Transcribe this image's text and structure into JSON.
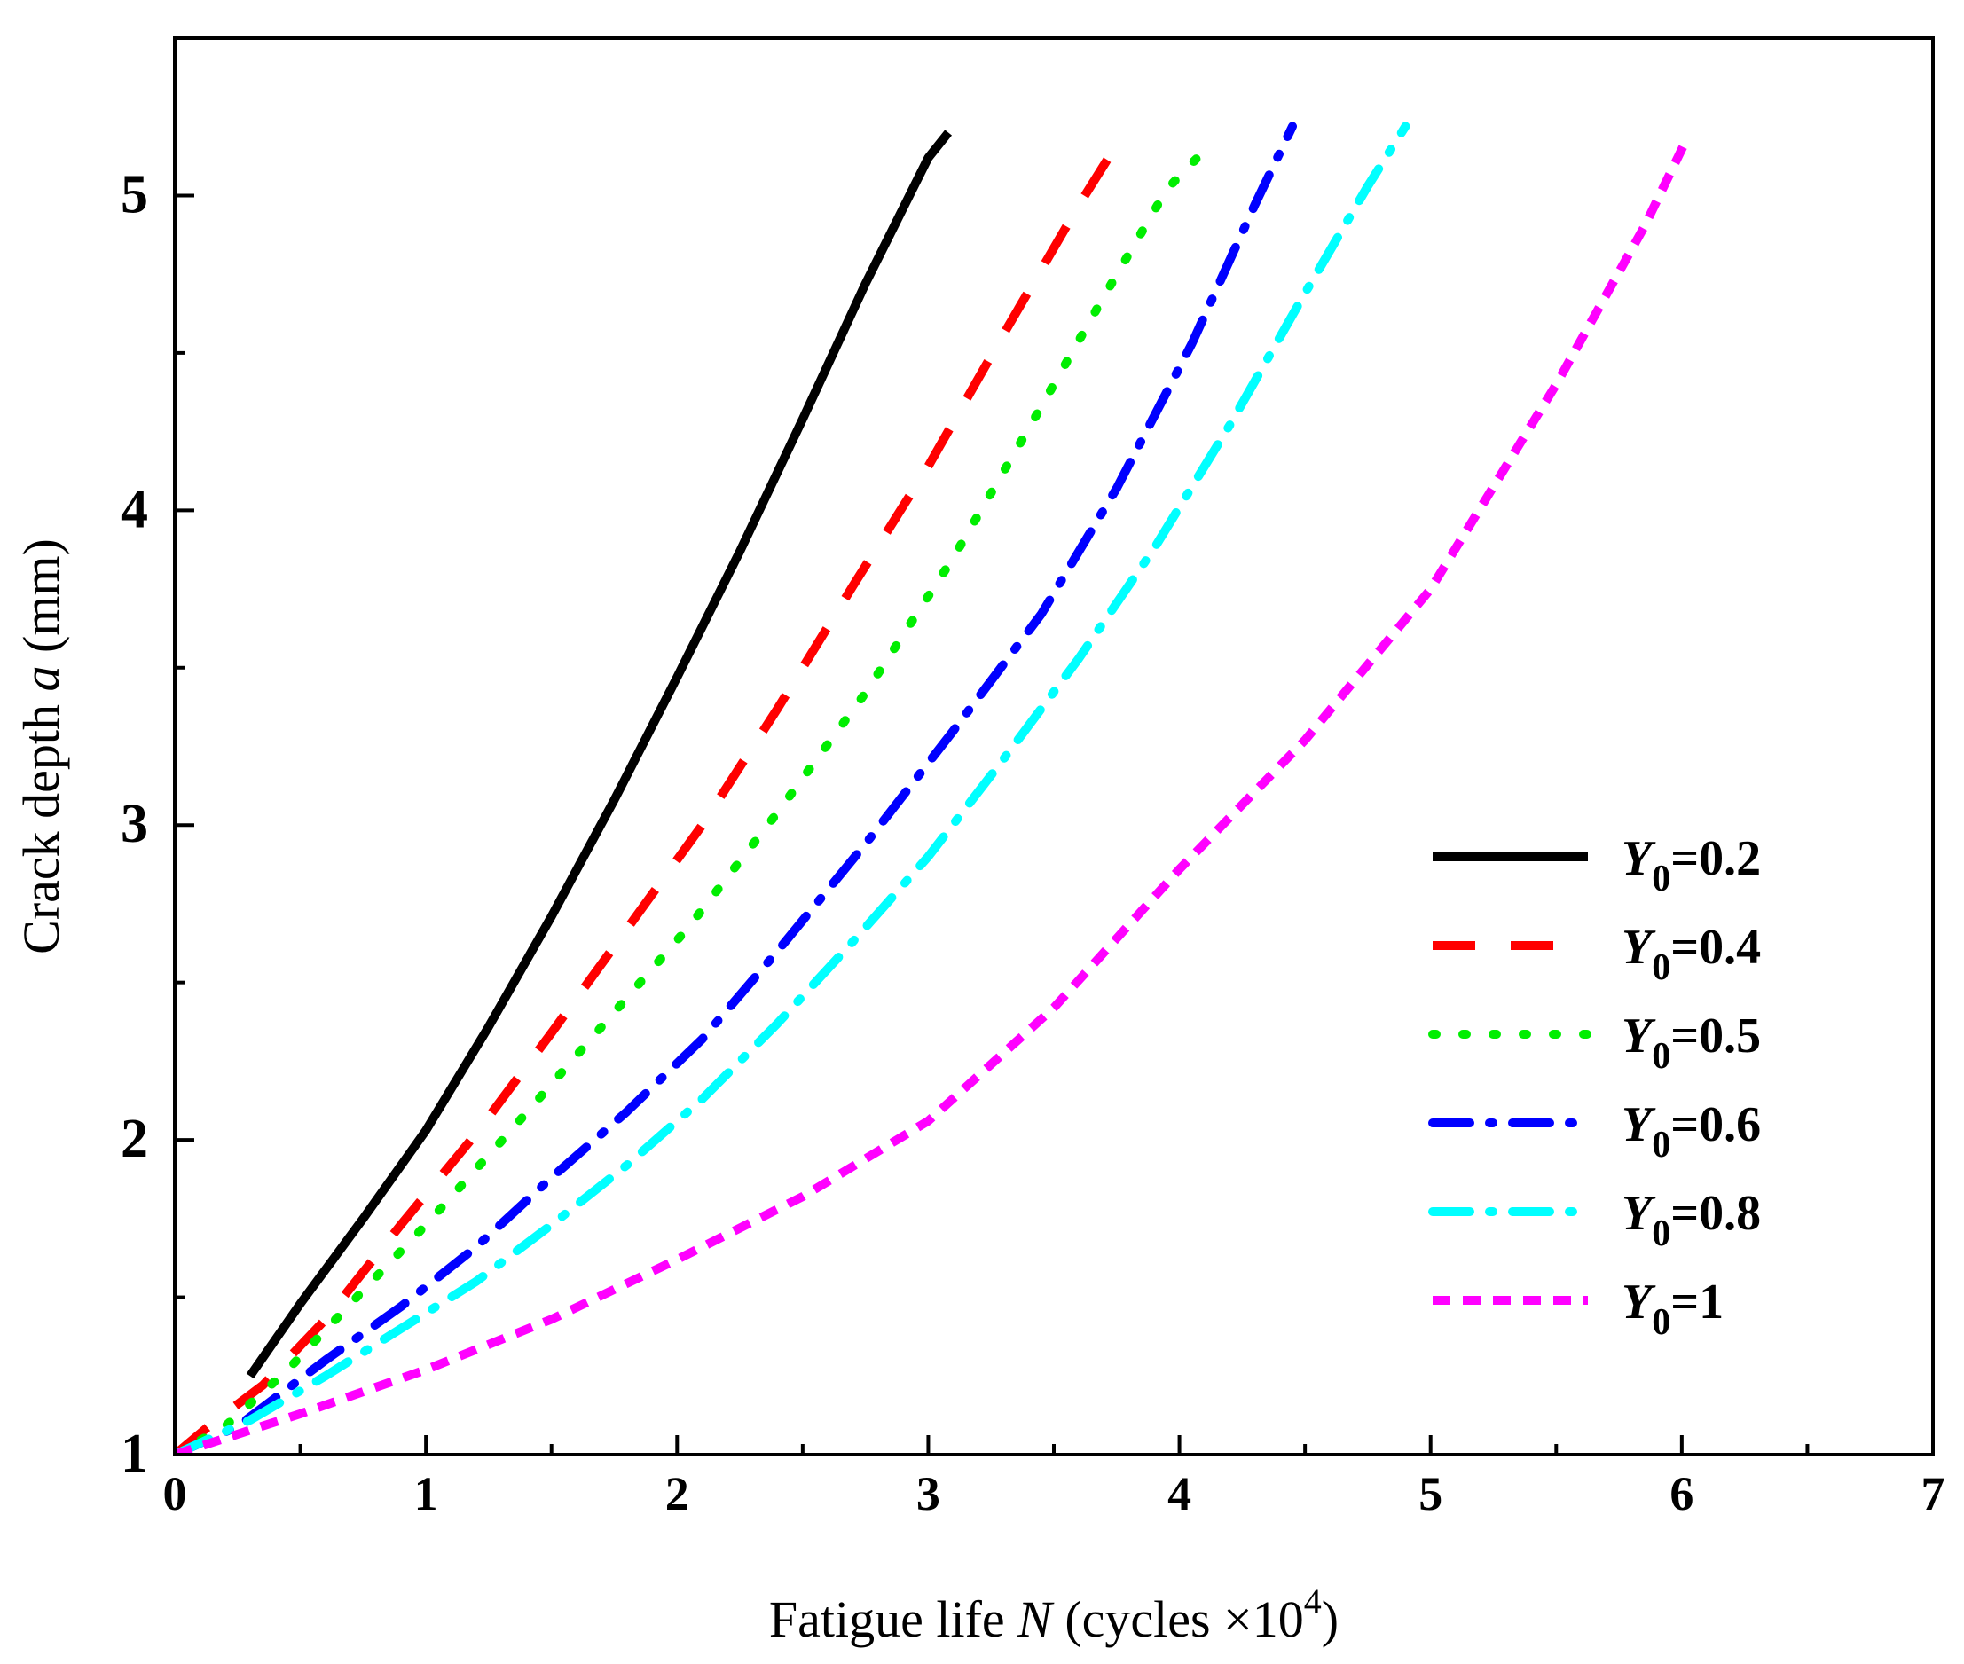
{
  "chart_data": {
    "type": "line",
    "title": "",
    "xlabel": {
      "prefix": "Fatigue life ",
      "var": "N",
      "mid": " (cycles ×10",
      "sup": "4",
      "suffix": ")"
    },
    "ylabel": {
      "prefix": "Crack depth ",
      "var": "a",
      "suffix": " (mm)"
    },
    "xlim": [
      0,
      7
    ],
    "ylim": [
      1,
      5.5
    ],
    "x_ticks": [
      0,
      1,
      2,
      3,
      4,
      5,
      6,
      7
    ],
    "x_tick_labels": [
      "0",
      "1",
      "2",
      "3",
      "4",
      "5",
      "6",
      "7"
    ],
    "y_ticks": [
      1,
      2,
      3,
      4,
      5
    ],
    "y_tick_labels": [
      "1",
      "2",
      "3",
      "4",
      "5"
    ],
    "grid": false,
    "legend_position": "lower-right",
    "series": [
      {
        "name": "Y0=0.2",
        "legend_var": "Y",
        "legend_sub": "0",
        "legend_value": "=0.2",
        "color": "#000000",
        "dash": "solid",
        "x": [
          0.3,
          0.5,
          0.75,
          1.0,
          1.25,
          1.5,
          1.75,
          2.0,
          2.25,
          2.5,
          2.75,
          3.0,
          3.08
        ],
        "y": [
          1.25,
          1.48,
          1.75,
          2.03,
          2.36,
          2.71,
          3.08,
          3.47,
          3.87,
          4.29,
          4.72,
          5.12,
          5.2
        ]
      },
      {
        "name": "Y0=0.4",
        "legend_var": "Y",
        "legend_sub": "0",
        "legend_value": "=0.4",
        "color": "#ff0000",
        "dash": "dash",
        "x": [
          0.0,
          0.15,
          0.35,
          0.6,
          0.9,
          1.2,
          1.5,
          1.8,
          2.1,
          2.4,
          2.7,
          3.0,
          3.3,
          3.6,
          3.78
        ],
        "y": [
          1.0,
          1.1,
          1.22,
          1.43,
          1.73,
          2.02,
          2.34,
          2.67,
          3.0,
          3.37,
          3.76,
          4.14,
          4.56,
          4.97,
          5.2
        ]
      },
      {
        "name": "Y0=0.5",
        "legend_var": "Y",
        "legend_sub": "0",
        "legend_value": "=0.5",
        "color": "#00ee00",
        "dash": "dot",
        "x": [
          0.0,
          0.2,
          0.45,
          0.7,
          1.0,
          1.35,
          1.7,
          2.05,
          2.4,
          2.75,
          3.1,
          3.4,
          3.7,
          3.95,
          4.12
        ],
        "y": [
          1.0,
          1.09,
          1.27,
          1.48,
          1.73,
          2.04,
          2.36,
          2.68,
          3.04,
          3.42,
          3.85,
          4.26,
          4.68,
          5.02,
          5.16
        ]
      },
      {
        "name": "Y0=0.6",
        "legend_var": "Y",
        "legend_sub": "0",
        "legend_value": "=0.6",
        "color": "#0000ff",
        "dash": "dashdot",
        "x": [
          0.0,
          0.25,
          0.6,
          0.9,
          1.2,
          1.5,
          1.8,
          2.1,
          2.4,
          2.75,
          3.1,
          3.45,
          3.75,
          4.05,
          4.3,
          4.45
        ],
        "y": [
          1.0,
          1.09,
          1.3,
          1.47,
          1.66,
          1.88,
          2.09,
          2.32,
          2.6,
          2.94,
          3.3,
          3.67,
          4.07,
          4.53,
          4.97,
          5.22
        ]
      },
      {
        "name": "Y0=0.8",
        "legend_var": "Y",
        "legend_sub": "0",
        "legend_value": "=0.8",
        "color": "#00ffff",
        "dash": "dashdot",
        "x": [
          0.0,
          0.3,
          0.6,
          0.9,
          1.2,
          1.5,
          1.8,
          2.1,
          2.4,
          2.7,
          3.0,
          3.3,
          3.6,
          3.9,
          4.2,
          4.5,
          4.75,
          4.9
        ],
        "y": [
          1.0,
          1.11,
          1.25,
          1.4,
          1.55,
          1.73,
          1.92,
          2.13,
          2.37,
          2.63,
          2.9,
          3.21,
          3.53,
          3.88,
          4.27,
          4.69,
          5.03,
          5.22
        ]
      },
      {
        "name": "Y0=1",
        "legend_var": "Y",
        "legend_sub": "0",
        "legend_value": "=1",
        "color": "#ff00ff",
        "dash": "shortdash",
        "x": [
          0.0,
          0.5,
          1.0,
          1.5,
          2.0,
          2.5,
          3.0,
          3.5,
          4.0,
          4.5,
          5.0,
          5.5,
          5.85,
          6.02
        ],
        "y": [
          1.0,
          1.13,
          1.27,
          1.43,
          1.62,
          1.82,
          2.06,
          2.42,
          2.86,
          3.27,
          3.75,
          4.4,
          4.9,
          5.18
        ]
      }
    ]
  }
}
